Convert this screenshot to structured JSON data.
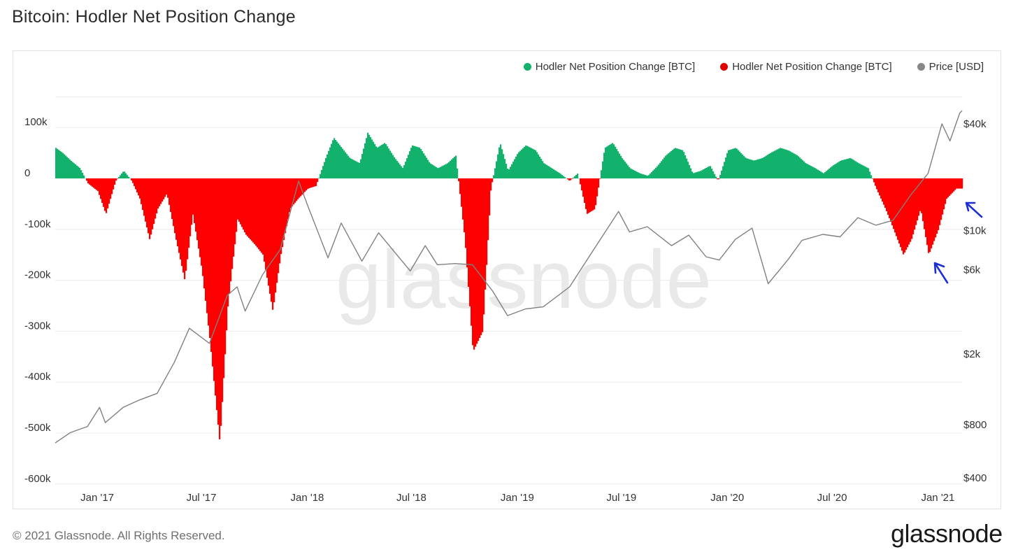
{
  "header": {
    "title": "Bitcoin: Hodler Net Position Change"
  },
  "footer": {
    "copyright": "© 2021 Glassnode. All Rights Reserved.",
    "brand": "glassnode"
  },
  "watermark": "glassnode",
  "legend": [
    {
      "label": "Hodler Net Position Change [BTC]",
      "color": "#12b26c"
    },
    {
      "label": "Hodler Net Position Change [BTC]",
      "color": "#e00000"
    },
    {
      "label": "Price [USD]",
      "color": "#888888"
    }
  ],
  "colors": {
    "positive": "#12b26c",
    "negative": "#ff0000",
    "price": "#808080",
    "grid": "#ececec",
    "annotation_arrow": "#1a2fd6"
  },
  "chart_data": {
    "type": "area",
    "x_axis": {
      "tick_labels": [
        "Jan '17",
        "Jul '17",
        "Jan '18",
        "Jul '18",
        "Jan '19",
        "Jul '19",
        "Jan '20",
        "Jul '20",
        "Jan '21"
      ],
      "range": [
        "2016-10",
        "2021-02"
      ]
    },
    "y_left": {
      "tick_labels": [
        "100k",
        "0",
        "-100k",
        "-200k",
        "-300k",
        "-400k",
        "-500k",
        "-600k"
      ],
      "range": [
        -600000,
        160000
      ]
    },
    "y_right": {
      "tick_labels": [
        "$40k",
        "$10k",
        "$6k",
        "$2k",
        "$800",
        "$400"
      ],
      "scale": "log",
      "range": [
        400,
        50000
      ]
    },
    "series": [
      {
        "name": "Hodler Net Position Change [BTC]",
        "color": "positive_negative",
        "x": [
          "2016-10-20",
          "2016-11-01",
          "2016-11-15",
          "2016-12-01",
          "2016-12-15",
          "2017-01-01",
          "2017-01-15",
          "2017-02-01",
          "2017-02-15",
          "2017-03-01",
          "2017-03-15",
          "2017-04-01",
          "2017-04-15",
          "2017-05-01",
          "2017-05-15",
          "2017-06-01",
          "2017-06-15",
          "2017-07-01",
          "2017-07-15",
          "2017-08-01",
          "2017-08-15",
          "2017-09-01",
          "2017-09-15",
          "2017-10-01",
          "2017-10-15",
          "2017-11-01",
          "2017-11-15",
          "2017-12-01",
          "2017-12-15",
          "2018-01-01",
          "2018-01-15",
          "2018-02-01",
          "2018-02-15",
          "2018-03-01",
          "2018-03-15",
          "2018-04-01",
          "2018-04-15",
          "2018-05-01",
          "2018-05-15",
          "2018-06-01",
          "2018-06-15",
          "2018-07-01",
          "2018-07-15",
          "2018-08-01",
          "2018-08-15",
          "2018-09-01",
          "2018-09-15",
          "2018-10-01",
          "2018-10-15",
          "2018-11-01",
          "2018-11-15",
          "2018-12-01",
          "2018-12-15",
          "2019-01-01",
          "2019-01-15",
          "2019-02-01",
          "2019-02-15",
          "2019-03-01",
          "2019-03-15",
          "2019-04-01",
          "2019-04-15",
          "2019-05-01",
          "2019-05-15",
          "2019-06-01",
          "2019-06-15",
          "2019-07-01",
          "2019-07-15",
          "2019-08-01",
          "2019-08-15",
          "2019-09-01",
          "2019-09-15",
          "2019-10-01",
          "2019-10-15",
          "2019-11-01",
          "2019-11-15",
          "2019-12-01",
          "2019-12-15",
          "2020-01-01",
          "2020-01-15",
          "2020-02-01",
          "2020-02-15",
          "2020-03-01",
          "2020-03-15",
          "2020-04-01",
          "2020-04-15",
          "2020-05-01",
          "2020-05-15",
          "2020-06-01",
          "2020-06-15",
          "2020-07-01",
          "2020-07-15",
          "2020-08-01",
          "2020-08-15",
          "2020-09-01",
          "2020-09-15",
          "2020-10-01",
          "2020-10-15",
          "2020-11-01",
          "2020-11-15",
          "2020-12-01",
          "2020-12-15",
          "2021-01-01",
          "2021-01-15",
          "2021-02-01"
        ],
        "y": [
          60000,
          50000,
          35000,
          20000,
          -10000,
          -25000,
          -70000,
          -5000,
          15000,
          -5000,
          -40000,
          -120000,
          -60000,
          -30000,
          -110000,
          -200000,
          -70000,
          -180000,
          -320000,
          -520000,
          -250000,
          -80000,
          -110000,
          -130000,
          -150000,
          -260000,
          -150000,
          -60000,
          -40000,
          -20000,
          -15000,
          40000,
          80000,
          60000,
          40000,
          30000,
          90000,
          60000,
          70000,
          40000,
          20000,
          65000,
          60000,
          30000,
          20000,
          30000,
          45000,
          -120000,
          -340000,
          -300000,
          -20000,
          70000,
          15000,
          50000,
          65000,
          55000,
          30000,
          20000,
          10000,
          -5000,
          10000,
          -70000,
          -60000,
          60000,
          70000,
          40000,
          20000,
          10000,
          5000,
          25000,
          45000,
          60000,
          55000,
          10000,
          15000,
          25000,
          -5000,
          55000,
          60000,
          40000,
          35000,
          40000,
          50000,
          60000,
          55000,
          45000,
          30000,
          20000,
          10000,
          25000,
          35000,
          40000,
          30000,
          20000,
          -20000,
          -60000,
          -100000,
          -150000,
          -120000,
          -60000,
          -150000,
          -100000,
          -40000,
          -20000
        ]
      },
      {
        "name": "Price [USD]",
        "color": "#808080",
        "x": [
          "2016-10-20",
          "2016-11-15",
          "2016-12-15",
          "2017-01-05",
          "2017-01-15",
          "2017-02-15",
          "2017-03-15",
          "2017-04-15",
          "2017-05-15",
          "2017-06-10",
          "2017-07-15",
          "2017-08-15",
          "2017-09-01",
          "2017-09-15",
          "2017-10-15",
          "2017-11-15",
          "2017-12-17",
          "2018-01-01",
          "2018-02-06",
          "2018-03-01",
          "2018-04-06",
          "2018-05-05",
          "2018-06-29",
          "2018-07-25",
          "2018-08-15",
          "2018-09-15",
          "2018-10-15",
          "2018-11-20",
          "2018-12-15",
          "2019-01-15",
          "2019-02-15",
          "2019-04-02",
          "2019-05-15",
          "2019-06-26",
          "2019-07-15",
          "2019-08-15",
          "2019-09-26",
          "2019-10-26",
          "2019-11-25",
          "2019-12-18",
          "2020-01-15",
          "2020-02-13",
          "2020-03-12",
          "2020-04-15",
          "2020-05-10",
          "2020-06-15",
          "2020-07-15",
          "2020-08-15",
          "2020-09-15",
          "2020-10-15",
          "2020-11-15",
          "2020-12-15",
          "2021-01-08",
          "2021-01-22",
          "2021-02-08",
          "2021-02-12"
        ],
        "y": [
          630,
          720,
          780,
          1000,
          820,
          1000,
          1100,
          1200,
          1800,
          2800,
          2300,
          4300,
          4800,
          3500,
          5600,
          7800,
          19000,
          14000,
          7000,
          11000,
          6700,
          9700,
          5900,
          8200,
          6400,
          6500,
          6400,
          4500,
          3300,
          3600,
          3700,
          4800,
          7900,
          12800,
          9800,
          10500,
          8200,
          9400,
          7100,
          6800,
          8900,
          10300,
          5000,
          6800,
          8800,
          9500,
          9200,
          11800,
          10700,
          11400,
          15900,
          21000,
          40000,
          32000,
          46000,
          47500
        ]
      }
    ]
  }
}
